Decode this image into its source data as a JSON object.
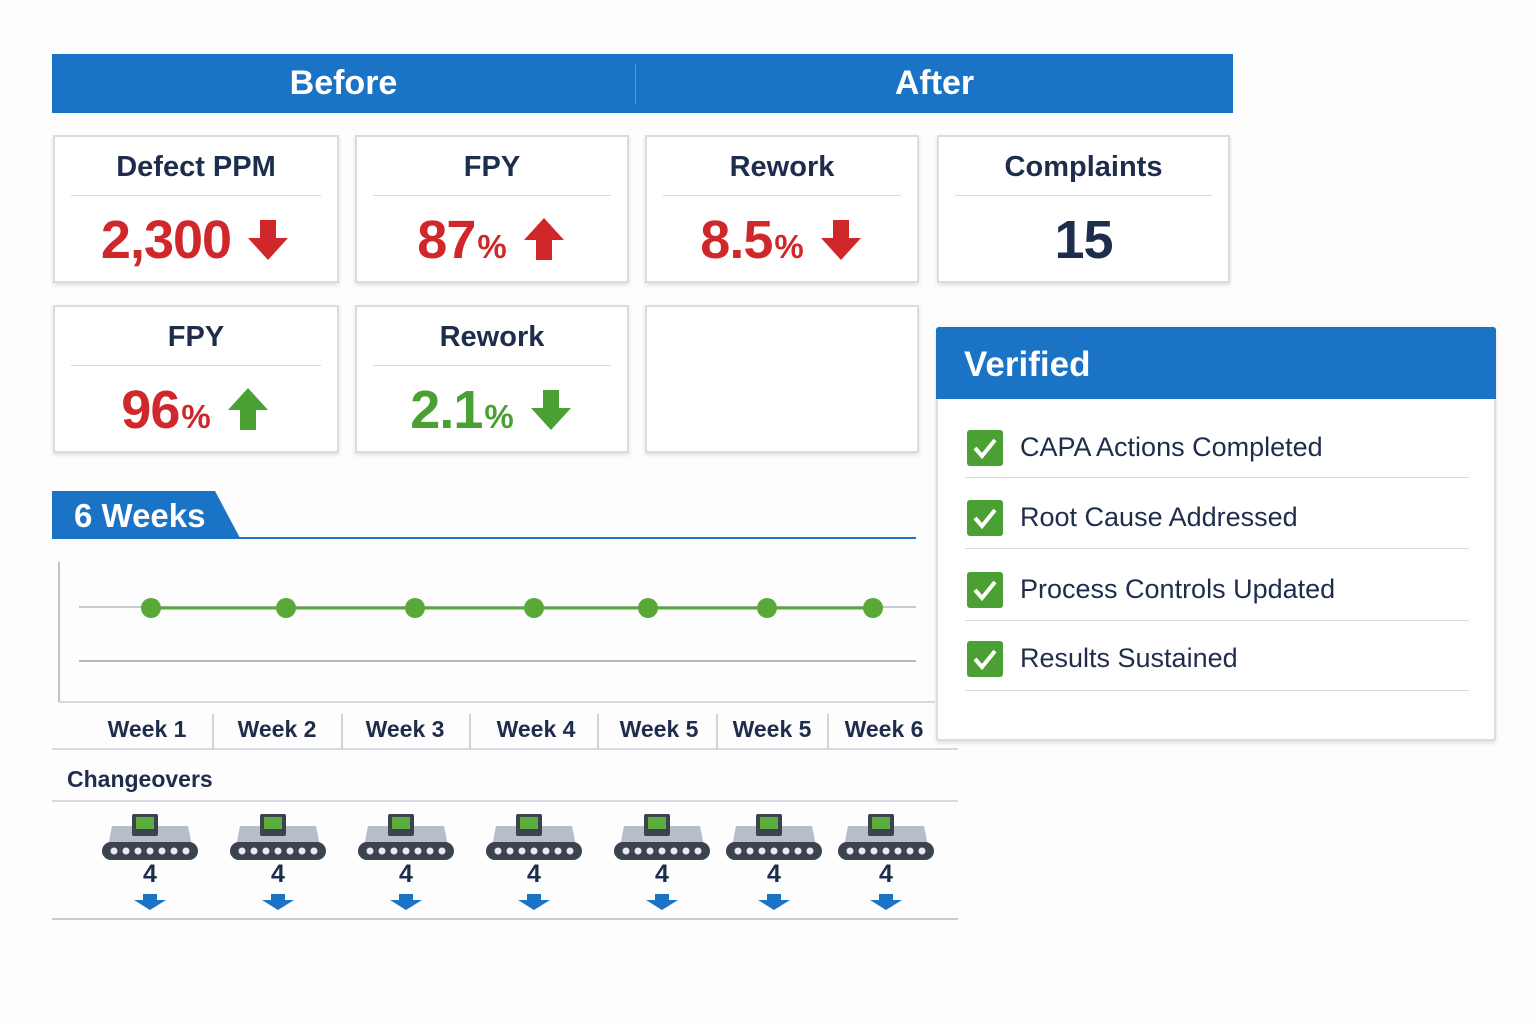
{
  "header": {
    "before": "Before",
    "after": "After"
  },
  "cards": [
    {
      "label": "Defect PPM",
      "value": "2,300",
      "trend": "down",
      "color": "#d0282a"
    },
    {
      "label": "FPY",
      "value": "87",
      "unit": "%",
      "trend": "up",
      "color": "#d0282a"
    },
    {
      "label": "Rework",
      "value": "8.5",
      "unit": "%",
      "trend": "down",
      "color": "#d0282a"
    },
    {
      "label": "Complaints",
      "value": "15",
      "color": "#1f2d4d"
    },
    {
      "label": "FPY",
      "value": "96",
      "unit": "%",
      "trend": "up",
      "color": "#d0282a",
      "arrow_color": "#4aa032"
    },
    {
      "label": "Rework",
      "value": "2.1",
      "unit": "%",
      "trend": "down",
      "color": "#4aa032"
    }
  ],
  "timeline": {
    "title": "6 Weeks",
    "weeks": [
      "Week 1",
      "Week 2",
      "Week 3",
      "Week 4",
      "Week 5",
      "Week 5",
      "Week 6"
    ],
    "line_color": "#5aa83a"
  },
  "changeovers": {
    "label": "Changeovers",
    "counts": [
      "4",
      "4",
      "4",
      "4",
      "4",
      "4",
      "4"
    ]
  },
  "verified": {
    "title": "Verified",
    "items": [
      "CAPA Actions Completed",
      "Root Cause Addressed",
      "Process Controls Updated",
      "Results Sustained"
    ]
  }
}
